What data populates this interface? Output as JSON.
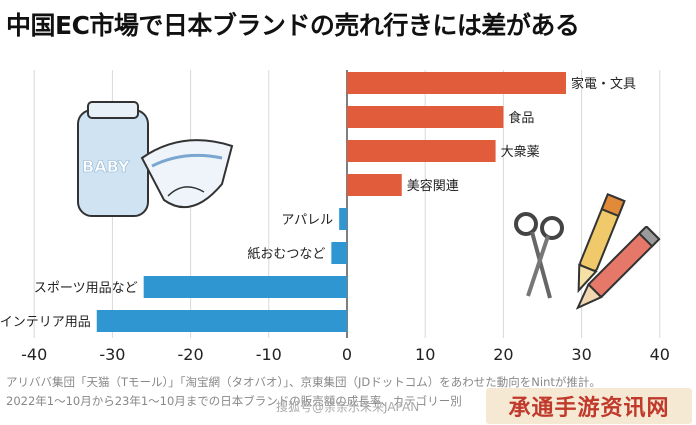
{
  "title": "中国EC市場で日本ブランドの売れ行きには差がある",
  "chart_data": {
    "type": "bar",
    "orientation": "horizontal",
    "title": "中国EC市場で日本ブランドの売れ行きには差がある",
    "categories": [
      "家電・文具",
      "食品",
      "大衆薬",
      "美容関連",
      "アパレル",
      "紙おむつなど",
      "スポーツ用品など",
      "インテリア用品"
    ],
    "values": [
      28,
      20,
      19,
      7,
      -1,
      -2,
      -26,
      -32
    ],
    "xlim": [
      -40,
      40
    ],
    "xticks": [
      -40,
      -30,
      -20,
      -10,
      0,
      10,
      20,
      30,
      40
    ],
    "grid": true,
    "colors": {
      "positive": "#e05c3a",
      "negative": "#3096d2"
    }
  },
  "footnote": {
    "line1": "アリババ集団「天猫（Tモール）」「淘宝網（タオバオ）」、京東集団（JDドットコム）をあわせた動向をNintが推計。",
    "line2": "2022年1～10月から23年1～10月までの日本ブランドの販売額の成長率、カテゴリー別"
  },
  "credit": "搜狐号@亲亲乐未来JAPAN",
  "watermark": "承通手游资讯网",
  "illustrations": [
    "baby-diaper-package",
    "scissors-icon",
    "pen-icon",
    "pencil-icon"
  ]
}
